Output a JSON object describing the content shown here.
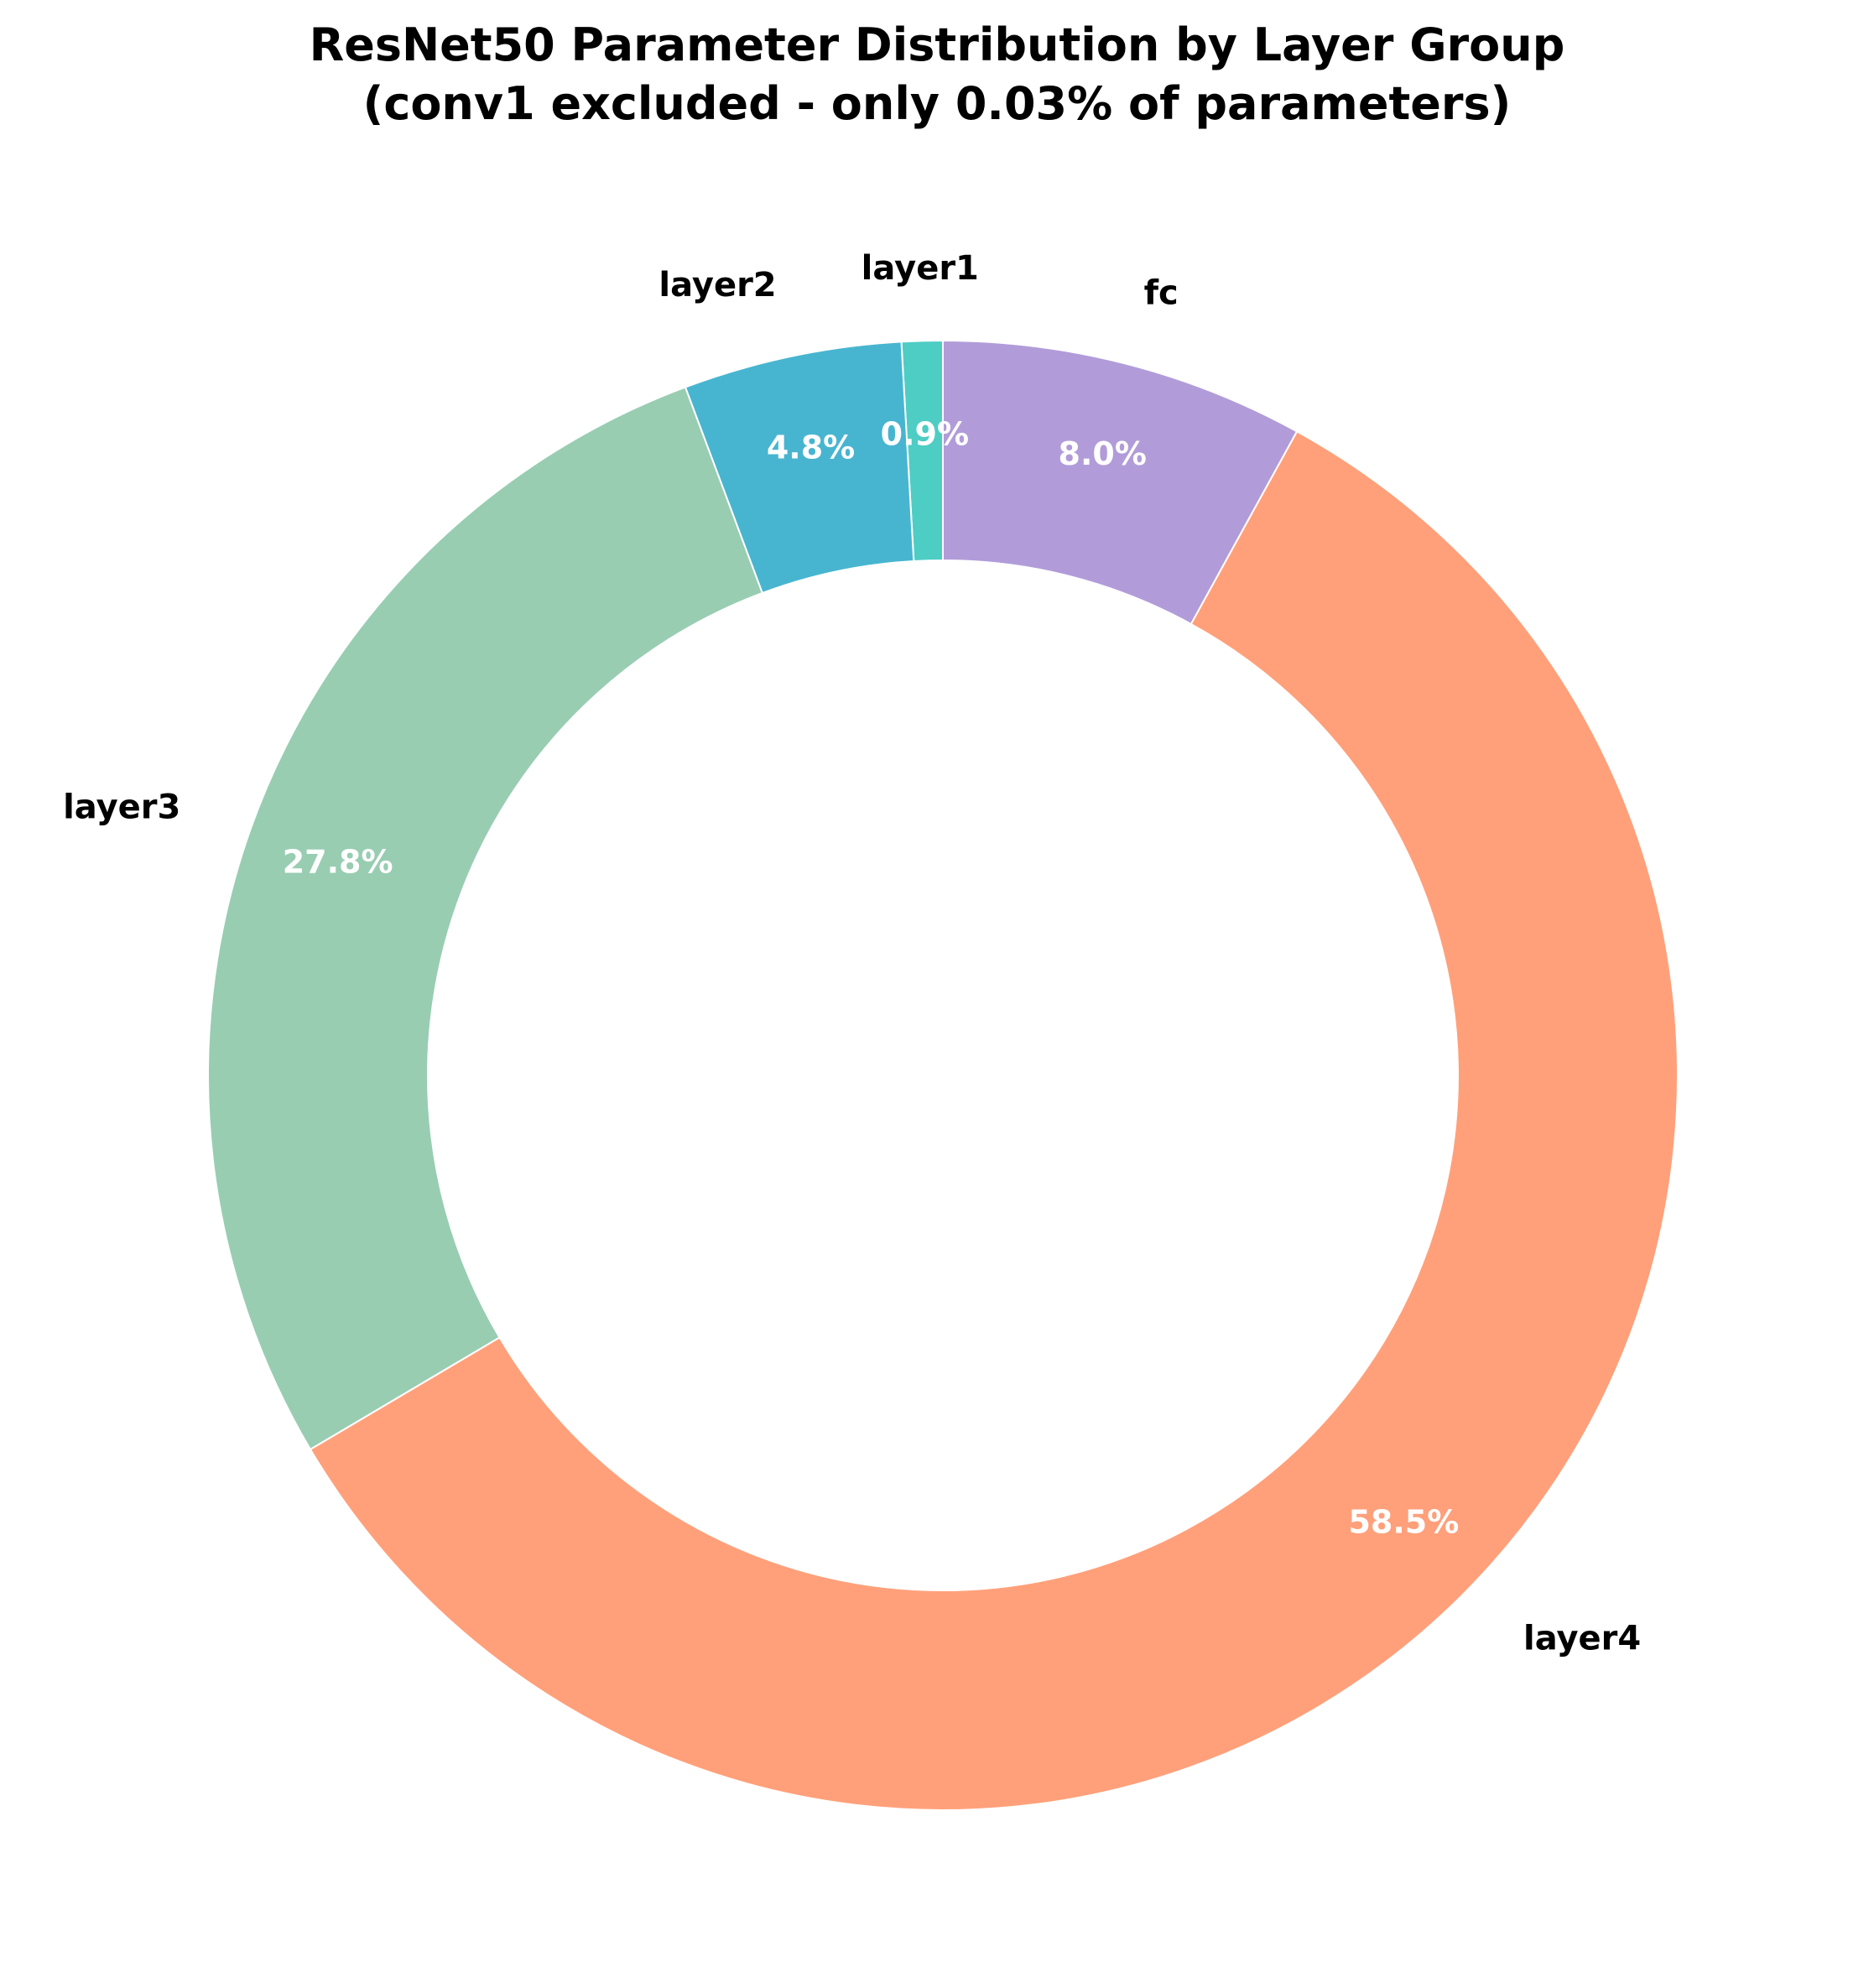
{
  "chart_data": {
    "type": "pie",
    "variant": "donut",
    "title": "ResNet50 Parameter Distribution by Layer Group",
    "subtitle": "(conv1 excluded - only 0.03% of parameters)",
    "start": "layer1 begins at 12 o'clock, slices proceed counter-clockwise",
    "slices": [
      {
        "label": "layer1",
        "value": 0.9,
        "pct_label": "0.9%",
        "color": "#4ecdc4"
      },
      {
        "label": "layer2",
        "value": 4.8,
        "pct_label": "4.8%",
        "color": "#48b5d0"
      },
      {
        "label": "layer3",
        "value": 27.8,
        "pct_label": "27.8%",
        "color": "#98cdb2"
      },
      {
        "label": "layer4",
        "value": 58.5,
        "pct_label": "58.5%",
        "color": "#ffa07a"
      },
      {
        "label": "fc",
        "value": 8.0,
        "pct_label": "8.0%",
        "color": "#b19cd9"
      }
    ]
  }
}
